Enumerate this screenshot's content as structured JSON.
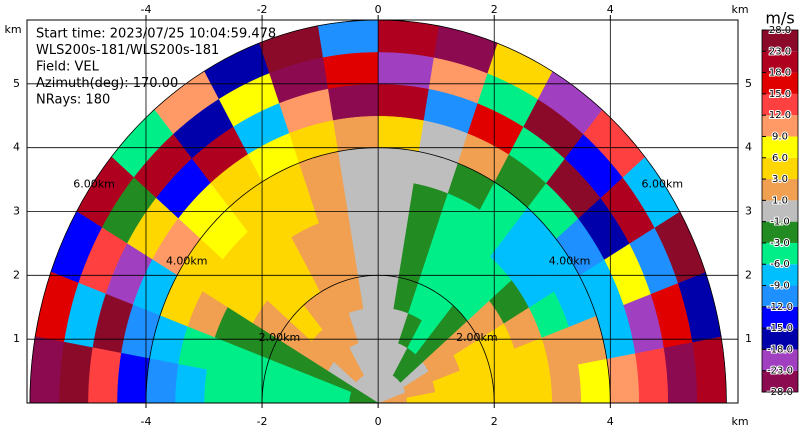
{
  "chart_data": {
    "type": "ppi",
    "annotations": [
      "Start time: 2023/07/25 10:04:59.478",
      "WLS200s-181/WLS200s-181",
      "Field: VEL",
      "Azimuth(deg): 170.00",
      "NRays: 180"
    ],
    "xlim": [
      -6.05,
      6.2
    ],
    "ylim": [
      0,
      6
    ],
    "xticks": [
      -4,
      -2,
      0,
      2,
      4
    ],
    "yticks": [
      1,
      2,
      3,
      4,
      5
    ],
    "x_unit": "km",
    "y_unit": "km",
    "grid": true,
    "rings": [
      2,
      4,
      6
    ],
    "ring_labels": [
      "2.00km",
      "4.00km",
      "6.00km"
    ],
    "range_edges": [
      0,
      0.5,
      1,
      1.5,
      2,
      2.5,
      3,
      3.5,
      4,
      4.5,
      5,
      5.5,
      6
    ],
    "angle_edges": [
      0,
      10,
      20,
      30,
      40,
      50,
      60,
      70,
      80,
      90,
      100,
      110,
      120,
      130,
      140,
      150,
      160,
      170,
      180
    ],
    "values": [
      [
        2,
        2,
        0,
        0,
        0,
        0,
        0,
        0,
        0,
        0,
        0,
        0,
        0,
        0,
        0,
        -2,
        -2,
        -2
      ],
      [
        4,
        2,
        2,
        0,
        -2,
        -2,
        0,
        0,
        0,
        0,
        0,
        0,
        2,
        2,
        0,
        -2,
        -4,
        -4
      ],
      [
        5,
        4,
        2,
        2,
        -2,
        -4,
        -2,
        0,
        0,
        0,
        0,
        2,
        2,
        2,
        2,
        -2,
        -4,
        -4
      ],
      [
        5,
        5,
        4,
        2,
        -2,
        -4,
        -4,
        -2,
        0,
        0,
        2,
        2,
        2,
        4,
        2,
        -2,
        -4,
        -4
      ],
      [
        4,
        5,
        4,
        2,
        -4,
        -4,
        -4,
        -2,
        0,
        0,
        2,
        2,
        4,
        4,
        2,
        -2,
        -4,
        -5
      ],
      [
        4,
        4,
        2,
        -2,
        -4,
        -5,
        -4,
        -2,
        0,
        0,
        2,
        2,
        4,
        5,
        4,
        -2,
        -5,
        -5
      ],
      [
        2,
        2,
        -5,
        -7,
        -7,
        -4,
        -4,
        -2,
        0,
        0,
        2,
        4,
        4,
        5,
        4,
        2,
        -5,
        -7
      ],
      [
        7,
        2,
        -7,
        -7,
        -7,
        -5,
        -2,
        0,
        0,
        0,
        2,
        4,
        5,
        7,
        5,
        4,
        -7,
        -10
      ],
      [
        10,
        -7,
        -7,
        -10,
        -5,
        -2,
        2,
        0,
        5,
        2,
        4,
        7,
        5,
        7,
        10,
        -7,
        -10,
        -13
      ],
      [
        13,
        -20,
        8,
        -16,
        25,
        -4,
        16,
        -11,
        20,
        -25,
        10,
        -7,
        20,
        -14,
        4,
        -20,
        26,
        13
      ],
      [
        -25,
        17,
        -10,
        20,
        -13,
        25,
        -5,
        11,
        -20,
        16,
        -26,
        8,
        -16,
        21,
        -2,
        14,
        -8,
        24
      ],
      [
        20,
        -16,
        26,
        -8,
        13,
        -21,
        5,
        -26,
        18,
        -12,
        24,
        -17,
        10,
        -4,
        22,
        -14,
        16,
        -24
      ]
    ],
    "colorbar": {
      "title": "m/s",
      "ticks": [
        {
          "value": -28,
          "label": "-28.0"
        },
        {
          "value": -23,
          "label": "-23.0"
        },
        {
          "value": -18,
          "label": "-18.0"
        },
        {
          "value": -15,
          "label": "-15.0"
        },
        {
          "value": -12,
          "label": "-12.0"
        },
        {
          "value": -9,
          "label": "-9.0"
        },
        {
          "value": -6,
          "label": "-6.0"
        },
        {
          "value": -3,
          "label": "-3.0"
        },
        {
          "value": -1,
          "label": "-1.0"
        },
        {
          "value": 1,
          "label": "1.0"
        },
        {
          "value": 3,
          "label": "3.0"
        },
        {
          "value": 6,
          "label": "6.0"
        },
        {
          "value": 9,
          "label": "9.0"
        },
        {
          "value": 12,
          "label": "12.0"
        },
        {
          "value": 15,
          "label": "15.0"
        },
        {
          "value": 18,
          "label": "18.0"
        },
        {
          "value": 23,
          "label": "23.0"
        },
        {
          "value": 28,
          "label": "28.0"
        }
      ],
      "colors": [
        "#8b0a50",
        "#a040c0",
        "#0000aa",
        "#0000ff",
        "#1e90ff",
        "#00bfff",
        "#00ee88",
        "#228b22",
        "#bebebe",
        "#f0a050",
        "#ffd700",
        "#ffff00",
        "#ff9966",
        "#ff4040",
        "#e00000",
        "#b00020",
        "#8b0a2a"
      ]
    }
  }
}
